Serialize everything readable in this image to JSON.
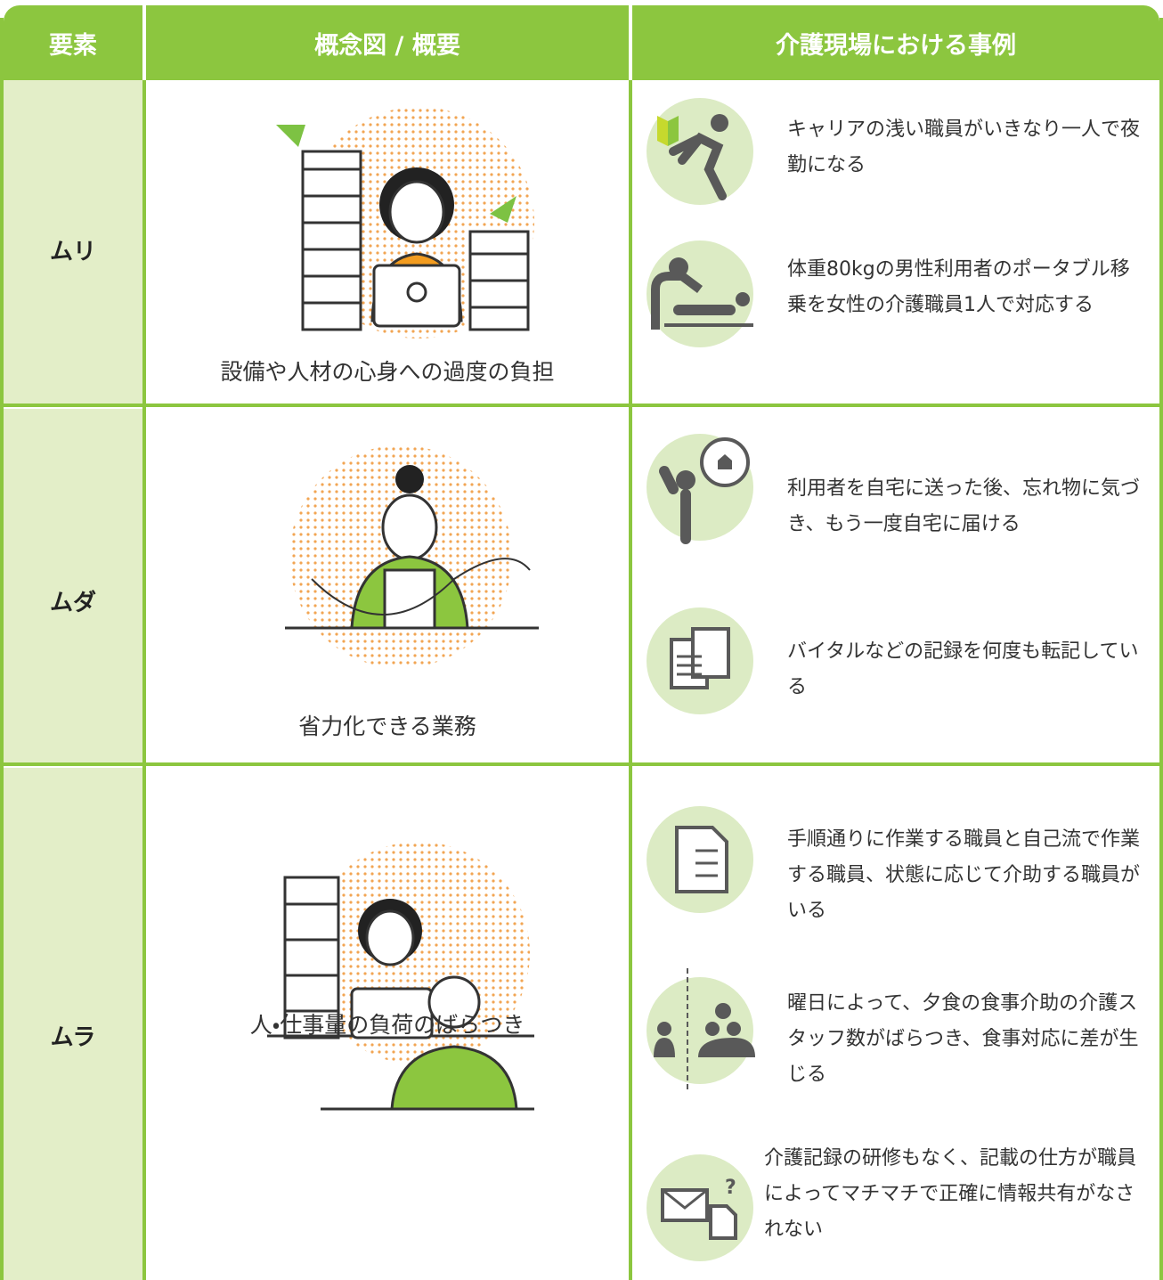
{
  "table": {
    "header": [
      "要素",
      "概念図 / 概要",
      "介護現場における事例"
    ],
    "rows": [
      {
        "element": "ムリ",
        "caption": "設備や人材の心身への過度の負担",
        "examples": [
          "キャリアの浅い職員がいきなり一人で夜勤になる",
          "体重80kgの男性利用者のポータブル移乗を女性の介護職員1人で対応する"
        ]
      },
      {
        "element": "ムダ",
        "caption": "省力化できる業務",
        "examples": [
          "利用者を自宅に送った後、忘れ物に気づき、もう一度自宅に届ける",
          "バイタルなどの記録を何度も転記している"
        ]
      },
      {
        "element": "ムラ",
        "caption": "人・仕事量の負荷のばらつき",
        "examples": [
          "手順通りに作業する職員と自己流で作業する職員、状態に応じて介助する職員がいる",
          "曜日によって、夕食の食事介助の介護スタッフ数がばらつき、食事対応に差が生じる",
          "介護記録の研修もなく、記載の仕方が職員によってマチマチで正確に情報共有がなされない"
        ]
      }
    ]
  }
}
